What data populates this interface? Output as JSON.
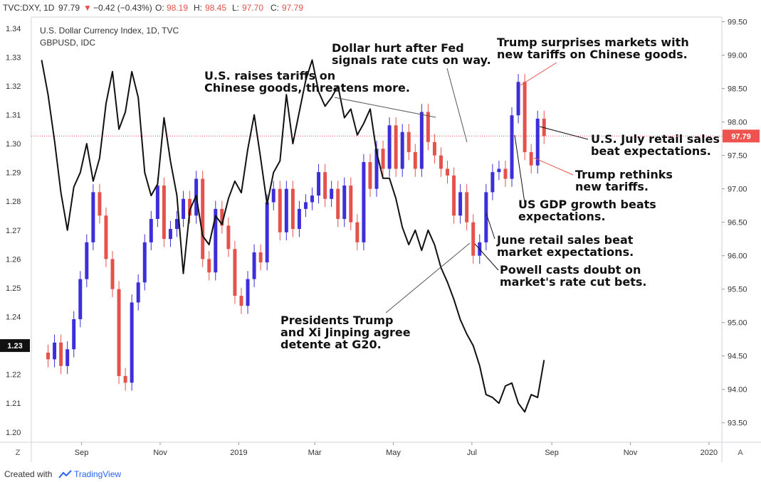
{
  "header": {
    "symbol": "TVC:DXY, 1D",
    "last": "97.79",
    "change": "−0.42 (−0.43%)",
    "o_label": "O:",
    "o_val": "98.19",
    "h_label": "H:",
    "h_val": "98.45",
    "l_label": "L:",
    "l_val": "97.70",
    "c_label": "C:",
    "c_val": "97.79"
  },
  "footer": {
    "created_with": "Created with",
    "brand": "TradingView"
  },
  "colors": {
    "up": "#3c2ed8",
    "down": "#e5524c",
    "line": "#111111",
    "price_tag": "#ef5350"
  },
  "chart_data": {
    "type": "line",
    "title": "U.S. Dollar Currency Index, 1D, TVC",
    "subtitle": "GBPUSD, IDC",
    "x_ticks": [
      "Sep",
      "Nov",
      "2019",
      "Mar",
      "May",
      "Jul",
      "Sep",
      "Nov",
      "2020"
    ],
    "y_left_ticks": [
      "1.34",
      "1.33",
      "1.32",
      "1.31",
      "1.30",
      "1.29",
      "1.28",
      "1.27",
      "1.26",
      "1.25",
      "1.24",
      "1.23",
      "1.22",
      "1.21",
      "1.20"
    ],
    "y_right_ticks": [
      "99.50",
      "99.00",
      "98.50",
      "98.00",
      "97.50",
      "97.00",
      "96.50",
      "96.00",
      "95.50",
      "95.00",
      "94.50",
      "94.00",
      "93.50"
    ],
    "ylim_left": [
      1.1965,
      1.3439
    ],
    "ylim_right": [
      93.21,
      99.57
    ],
    "left_tag": "1.23",
    "right_tag": "97.79",
    "price_line": 97.79,
    "corner_left": "Z",
    "corner_right": "A",
    "series": [
      {
        "name": "U.S. Dollar Currency Index",
        "style": "candles",
        "dates": [
          "2018-08-01",
          "2018-08-06",
          "2018-08-11",
          "2018-08-16",
          "2018-08-21",
          "2018-08-26",
          "2018-08-31",
          "2018-09-05",
          "2018-09-10",
          "2018-09-15",
          "2018-09-20",
          "2018-09-25",
          "2018-09-30",
          "2018-10-05",
          "2018-10-10",
          "2018-10-15",
          "2018-10-20",
          "2018-10-25",
          "2018-10-30",
          "2018-11-04",
          "2018-11-09",
          "2018-11-14",
          "2018-11-19",
          "2018-11-24",
          "2018-11-29",
          "2018-12-04",
          "2018-12-09",
          "2018-12-14",
          "2018-12-19",
          "2018-12-24",
          "2018-12-29",
          "2019-01-03",
          "2019-01-08",
          "2019-01-13",
          "2019-01-18",
          "2019-01-23",
          "2019-01-28",
          "2019-02-02",
          "2019-02-07",
          "2019-02-12",
          "2019-02-17",
          "2019-02-22",
          "2019-02-27",
          "2019-03-04",
          "2019-03-09",
          "2019-03-14",
          "2019-03-19",
          "2019-03-24",
          "2019-03-29",
          "2019-04-03",
          "2019-04-08",
          "2019-04-13",
          "2019-04-18",
          "2019-04-23",
          "2019-04-28",
          "2019-05-03",
          "2019-05-08",
          "2019-05-13",
          "2019-05-18",
          "2019-05-23",
          "2019-05-28",
          "2019-06-02",
          "2019-06-07",
          "2019-06-12",
          "2019-06-17",
          "2019-06-22",
          "2019-06-27",
          "2019-07-02",
          "2019-07-07",
          "2019-07-12",
          "2019-07-17",
          "2019-07-22",
          "2019-07-27",
          "2019-08-01",
          "2019-08-06",
          "2019-08-11",
          "2019-08-16",
          "2019-08-21",
          "2019-08-26"
        ],
        "values": [
          94.55,
          94.45,
          94.7,
          94.35,
          94.6,
          95.05,
          95.65,
          96.2,
          96.95,
          96.6,
          95.95,
          95.5,
          94.2,
          94.1,
          95.3,
          95.6,
          96.2,
          96.55,
          97.05,
          96.25,
          96.4,
          96.55,
          96.85,
          96.6,
          97.15,
          95.95,
          95.75,
          96.7,
          96.45,
          96.1,
          95.4,
          95.25,
          95.65,
          96.05,
          95.9,
          96.8,
          97.0,
          96.35,
          97.0,
          96.4,
          96.7,
          96.8,
          96.9,
          97.25,
          96.85,
          97.0,
          96.55,
          97.05,
          96.5,
          96.2,
          97.4,
          97.0,
          97.6,
          97.3,
          97.95,
          97.3,
          97.85,
          97.55,
          97.3,
          98.15,
          97.7,
          97.5,
          97.3,
          97.2,
          96.6,
          96.95,
          96.5,
          96.0,
          96.2,
          96.95,
          97.25,
          97.3,
          97.15,
          98.1,
          98.6,
          97.55,
          97.35,
          98.05,
          97.79
        ]
      },
      {
        "name": "GBPUSD",
        "style": "line",
        "dates": [
          "2018-08-01",
          "2018-08-06",
          "2018-08-11",
          "2018-08-16",
          "2018-08-21",
          "2018-08-26",
          "2018-08-31",
          "2018-09-05",
          "2018-09-10",
          "2018-09-15",
          "2018-09-20",
          "2018-09-25",
          "2018-09-30",
          "2018-10-05",
          "2018-10-10",
          "2018-10-15",
          "2018-10-20",
          "2018-10-25",
          "2018-10-30",
          "2018-11-04",
          "2018-11-09",
          "2018-11-14",
          "2018-11-19",
          "2018-11-24",
          "2018-11-29",
          "2018-12-04",
          "2018-12-09",
          "2018-12-14",
          "2018-12-19",
          "2018-12-24",
          "2018-12-29",
          "2019-01-03",
          "2019-01-08",
          "2019-01-13",
          "2019-01-18",
          "2019-01-23",
          "2019-01-28",
          "2019-02-02",
          "2019-02-07",
          "2019-02-12",
          "2019-02-17",
          "2019-02-22",
          "2019-02-27",
          "2019-03-04",
          "2019-03-09",
          "2019-03-14",
          "2019-03-19",
          "2019-03-24",
          "2019-03-29",
          "2019-04-03",
          "2019-04-08",
          "2019-04-13",
          "2019-04-18",
          "2019-04-23",
          "2019-04-28",
          "2019-05-03",
          "2019-05-08",
          "2019-05-13",
          "2019-05-18",
          "2019-05-23",
          "2019-05-28",
          "2019-06-02",
          "2019-06-07",
          "2019-06-12",
          "2019-06-17",
          "2019-06-22",
          "2019-06-27",
          "2019-07-02",
          "2019-07-07",
          "2019-07-12",
          "2019-07-17",
          "2019-07-22",
          "2019-07-27",
          "2019-08-01",
          "2019-08-06",
          "2019-08-11",
          "2019-08-16",
          "2019-08-21",
          "2019-08-26"
        ],
        "values": [
          1.329,
          1.317,
          1.301,
          1.283,
          1.27,
          1.285,
          1.29,
          1.3,
          1.287,
          1.295,
          1.314,
          1.325,
          1.305,
          1.311,
          1.325,
          1.316,
          1.29,
          1.282,
          1.286,
          1.309,
          1.294,
          1.282,
          1.255,
          1.277,
          1.282,
          1.268,
          1.265,
          1.275,
          1.272,
          1.281,
          1.287,
          1.283,
          1.298,
          1.31,
          1.295,
          1.279,
          1.29,
          1.294,
          1.317,
          1.3,
          1.311,
          1.322,
          1.329,
          1.318,
          1.313,
          1.316,
          1.32,
          1.309,
          1.312,
          1.303,
          1.307,
          1.312,
          1.297,
          1.288,
          1.288,
          1.281,
          1.271,
          1.265,
          1.27,
          1.263,
          1.27,
          1.265,
          1.257,
          1.252,
          1.246,
          1.239,
          1.234,
          1.23,
          1.223,
          1.213,
          1.212,
          1.21,
          1.216,
          1.217,
          1.21,
          1.207,
          1.213,
          1.212,
          1.225
        ]
      }
    ],
    "annotations": [
      {
        "id": "a1",
        "text": [
          "U.S. raises tariffs on",
          "Chinese goods, threatens more."
        ]
      },
      {
        "id": "a2",
        "text": [
          "Dollar hurt after Fed",
          "signals rate cuts on way."
        ]
      },
      {
        "id": "a3",
        "text": [
          "Trump surprises markets with",
          "new tariffs on Chinese goods."
        ]
      },
      {
        "id": "a4",
        "text": [
          "U.S. July retail sales",
          "beat expectations."
        ]
      },
      {
        "id": "a5",
        "text": [
          "Trump rethinks",
          "new tariffs."
        ]
      },
      {
        "id": "a6",
        "text": [
          "US GDP growth beats",
          "expectations."
        ]
      },
      {
        "id": "a7",
        "text": [
          "June retail sales beat",
          "market expectations."
        ]
      },
      {
        "id": "a8",
        "text": [
          "Powell casts doubt on",
          "market's rate cut bets."
        ]
      },
      {
        "id": "a9",
        "text": [
          "Presidents Trump",
          "and Xi Jinping agree",
          "detente at G20."
        ]
      }
    ]
  }
}
